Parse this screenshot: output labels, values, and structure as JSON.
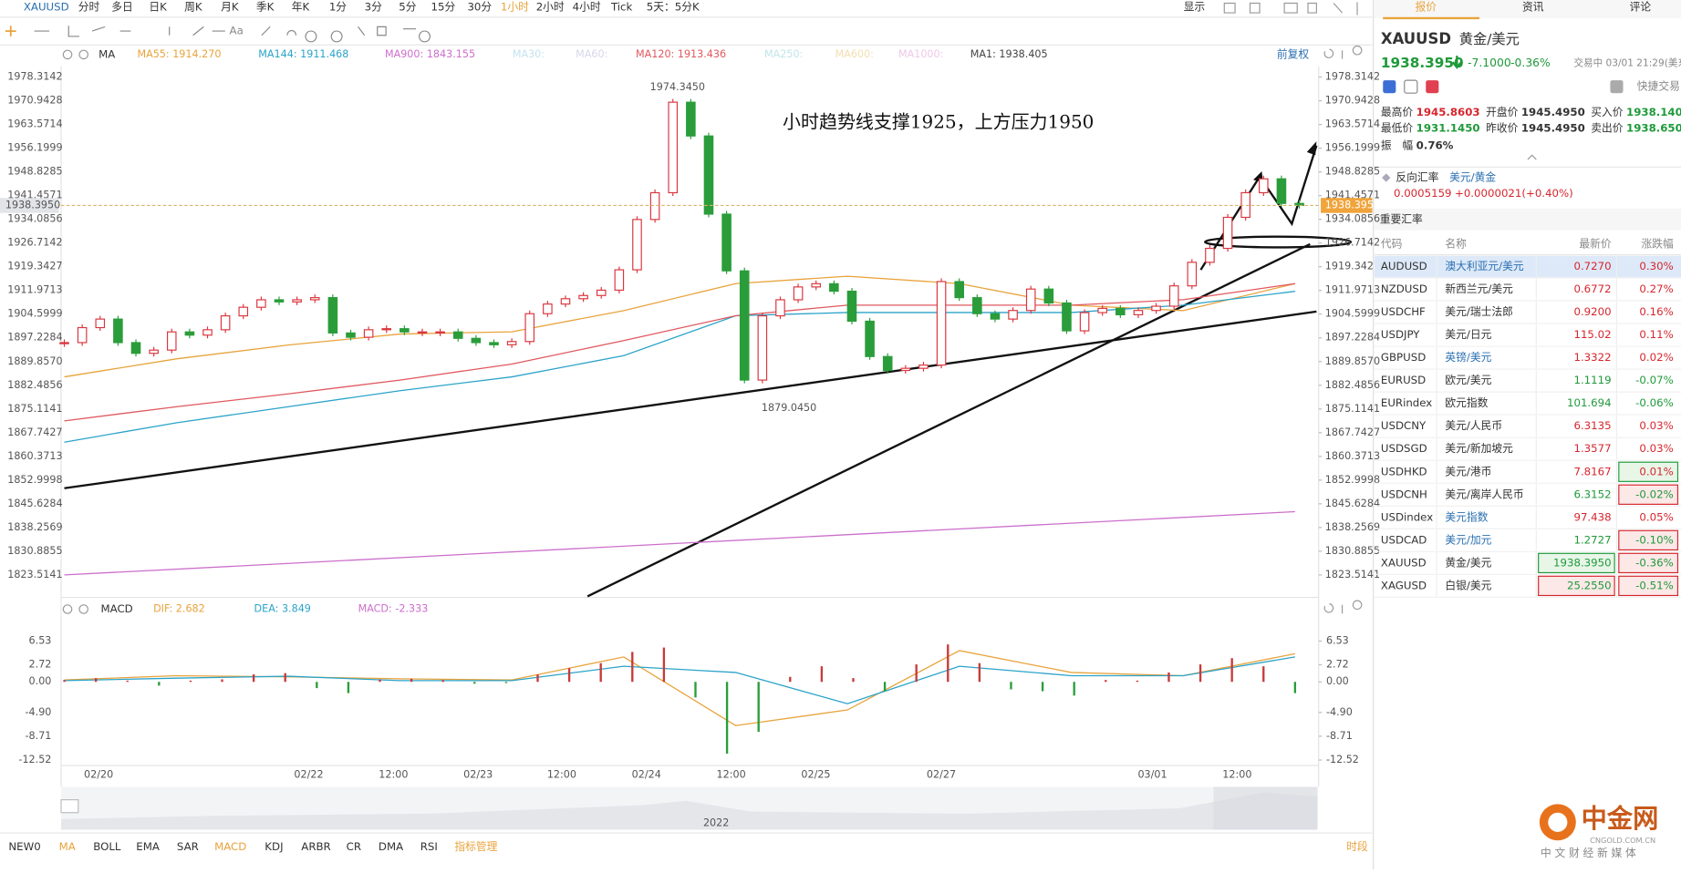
{
  "toolbar": {
    "symbol": "XAUUSD",
    "periods": [
      "分时",
      "多日",
      "日K",
      "周K",
      "月K",
      "季K",
      "年K",
      "1分",
      "3分",
      "5分",
      "15分",
      "30分",
      "1小时",
      "2小时",
      "4小时",
      "Tick",
      "5天：5分K"
    ],
    "active": 12,
    "display": "显示",
    "text_tool": "Aa"
  },
  "chart_data": [
    {
      "type": "candlestick",
      "indicator": "MA",
      "right_label": "前复权",
      "up_color": "#d9363e",
      "down_color": "#2a9d3a",
      "close": [
        1895.75,
        1900.41,
        1903.07,
        1895.75,
        1892.42,
        1893.42,
        1899.08,
        1898.08,
        1899.75,
        1904.07,
        1906.74,
        1909.07,
        1908.4,
        1909.07,
        1909.73,
        1898.75,
        1897.42,
        1899.75,
        1900.08,
        1899.08,
        1899.08,
        1899.08,
        1897.08,
        1895.75,
        1895.08,
        1896.08,
        1904.74,
        1907.74,
        1909.4,
        1910.4,
        1912.06,
        1918.39,
        1934.03,
        1942.36,
        1970.5,
        1960,
        1935.7,
        1918.06,
        1884.1,
        1904.07,
        1909.07,
        1913.06,
        1914.06,
        1911.73,
        1902.41,
        1891.42,
        1887.1,
        1887.76,
        1888.76,
        1914.73,
        1909.73,
        1904.74,
        1903.07,
        1905.74,
        1912.4,
        1908.07,
        1899.41,
        1905.07,
        1906.4,
        1904.41,
        1905.74,
        1907.07,
        1913.39,
        1920.72,
        1925.05,
        1934.7,
        1942.36,
        1946.68,
        1939.03,
        1938.4
      ],
      "ma": [
        {
          "label": "MA55: 1914.270",
          "color": "#e8a33c",
          "values": [
            1885.1,
            1890.7,
            1895.0,
            1898.4,
            1899.1,
            1905.7,
            1914.1,
            1916.4,
            1914.1,
            1907.4,
            1905.7,
            1914.1
          ]
        },
        {
          "label": "MA144: 1911.468",
          "color": "#2ba3c9",
          "values": [
            1864.8,
            1870.8,
            1875.8,
            1880.8,
            1885.1,
            1891.7,
            1904.1,
            1905.1,
            1905.1,
            1905.1,
            1907.4,
            1911.7
          ]
        },
        {
          "label": "MA900: 1843.155",
          "color": "#cc6fcc",
          "values": [
            1823.5,
            1843.2
          ]
        },
        {
          "label": "MA30:",
          "color": "#c5e3ef"
        },
        {
          "label": "MA60:",
          "color": "#d7d7ea"
        },
        {
          "label": "MA120: 1913.436",
          "color": "#e0585e",
          "values": [
            1871.4,
            1875.8,
            1879.8,
            1884.1,
            1889.1,
            1896.4,
            1904.1,
            1907.4,
            1907.4,
            1907.4,
            1909.1,
            1914.1
          ]
        },
        {
          "label": "MA250:",
          "color": "#bfe6ea"
        },
        {
          "label": "MA600:",
          "color": "#f2dfb0"
        },
        {
          "label": "MA1000:",
          "color": "#efc8e8"
        },
        {
          "label": "MA1: 1938.405",
          "color": "#444444"
        }
      ],
      "ylim": [
        1816.52,
        1981.64
      ],
      "yticks": [
        1978.3142,
        1970.9428,
        1963.5714,
        1956.1999,
        1948.8285,
        1941.4571,
        1934.0856,
        1926.7142,
        1919.3427,
        1911.9713,
        1904.5999,
        1897.2284,
        {
          "value": 1889.857,
          "label": "1889.8570"
        },
        1882.4856,
        1875.1141,
        1867.7427,
        1860.3713,
        1852.9998,
        1845.6284,
        1838.2569,
        1830.8855,
        1823.5141
      ],
      "current_price": {
        "value": 1938.395,
        "label": "1938.3950"
      },
      "high_label": {
        "value": 1974.345,
        "label": "1974.3450"
      },
      "low_label": {
        "value": 1879.045,
        "label": "1879.0450"
      },
      "note": "小时趋势线支撑1925，上方压力1950",
      "x_labels": [
        "02/20",
        "02/22",
        "12:00",
        "02/23",
        "12:00",
        "02/24",
        "12:00",
        "02/25",
        "02/27",
        "03/01",
        "12:00"
      ]
    },
    {
      "type": "macd",
      "title": "MACD",
      "lines": [
        {
          "label": "DIF: 2.682",
          "color": "#e8a33c",
          "values": [
            0.3,
            1,
            0.8,
            0.5,
            0.3,
            4,
            -7,
            -4.5,
            5,
            1.5,
            1,
            4.5
          ]
        },
        {
          "label": "DEA: 3.849",
          "color": "#2ba3c9",
          "values": [
            0.2,
            0.6,
            0.9,
            0.2,
            0.2,
            2.5,
            1.5,
            -3.5,
            2.5,
            1,
            1,
            4
          ]
        }
      ],
      "histogram": {
        "label": "MACD: -2.333",
        "color": "#cc6fcc",
        "values": [
          0.3,
          0.6,
          0.2,
          -0.6,
          0.2,
          0.4,
          1.2,
          1.4,
          -1,
          -1.8,
          0.4,
          0.5,
          0.3,
          -0.3,
          -0.2,
          1.2,
          2.2,
          3,
          4.8,
          5.5,
          -2.5,
          -11.5,
          -8,
          0.8,
          2.5,
          0.6,
          -1.5,
          2.8,
          6,
          3,
          -1.2,
          -1.5,
          -2.2,
          0.3,
          0.2,
          1.5,
          2.8,
          3.8,
          2.5,
          -1.8
        ]
      },
      "ylim": [
        -13.4,
        10.1
      ],
      "yticks": [
        6.53,
        2.72,
        {
          "value": 0,
          "label": "0.00"
        },
        {
          "value": -4.9,
          "label": "-4.90"
        },
        -8.71,
        -12.52
      ]
    }
  ],
  "navigator": {
    "year": "2022"
  },
  "indicators": {
    "items": [
      "NEW0",
      "MA",
      "BOLL",
      "EMA",
      "SAR",
      "MACD",
      "KDJ",
      "ARBR",
      "CR",
      "DMA",
      "RSI",
      "指标管理"
    ],
    "active": [
      1,
      5,
      11
    ],
    "period": "时段"
  },
  "quote": {
    "tabs": [
      "报价",
      "资讯",
      "评论"
    ],
    "symbol": "XAUUSD",
    "name": "黄金/美元",
    "price": "1938.3950",
    "change": "-7.1000",
    "pct": "-0.36%",
    "status": "交易中 03/01 21:29(美东",
    "quick": "快捷交易",
    "stats": [
      [
        "最高价",
        "1945.8603"
      ],
      [
        "开盘价",
        "1945.4950"
      ],
      [
        "买入价",
        "1938.1400"
      ],
      [
        "最低价",
        "1931.1450"
      ],
      [
        "昨收价",
        "1945.4950"
      ],
      [
        "卖出价",
        "1938.6500"
      ],
      [
        "振　幅",
        "0.76%"
      ]
    ],
    "reverse": {
      "label": "反向汇率",
      "pair": "美元/黄金",
      "price": "0.0005159",
      "change": "+0.0000021(+0.40%)"
    },
    "section": "重要汇率",
    "table": {
      "header": [
        "代码",
        "名称",
        "最新价",
        "涨跌幅"
      ],
      "rows": [
        [
          "AUDUSD",
          "澳大利亚元/美元",
          "0.7270",
          "0.30%"
        ],
        [
          "NZDUSD",
          "新西兰元/美元",
          "0.6772",
          "0.27%"
        ],
        [
          "USDCHF",
          "美元/瑞士法郎",
          "0.9200",
          "0.16%"
        ],
        [
          "USDJPY",
          "美元/日元",
          "115.02",
          "0.11%"
        ],
        [
          "GBPUSD",
          "英镑/美元",
          "1.3322",
          "0.02%"
        ],
        [
          "EURUSD",
          "欧元/美元",
          "1.1119",
          "-0.07%"
        ],
        [
          "EURindex",
          "欧元指数",
          "101.694",
          "-0.06%"
        ],
        [
          "USDCNY",
          "美元/人民币",
          "6.3135",
          "0.03%"
        ],
        [
          "USDSGD",
          "美元/新加坡元",
          "1.3577",
          "0.03%"
        ],
        [
          "USDHKD",
          "美元/港币",
          "7.8167",
          "0.01%"
        ],
        [
          "USDCNH",
          "美元/离岸人民币",
          "6.3152",
          "-0.02%"
        ],
        [
          "USDindex",
          "美元指数",
          "97.438",
          "0.05%"
        ],
        [
          "USDCAD",
          "美元/加元",
          "1.2727",
          "-0.10%"
        ],
        [
          "XAUUSD",
          "黄金/美元",
          "1938.3950",
          "-0.36%"
        ],
        [
          "XAGUSD",
          "白银/美元",
          "25.2550",
          "-0.51%"
        ]
      ]
    }
  },
  "watermark": {
    "name": "中金网",
    "url": "CNGOLD.COM.CN",
    "slogan": "中 文 财 经 新 媒 体"
  }
}
